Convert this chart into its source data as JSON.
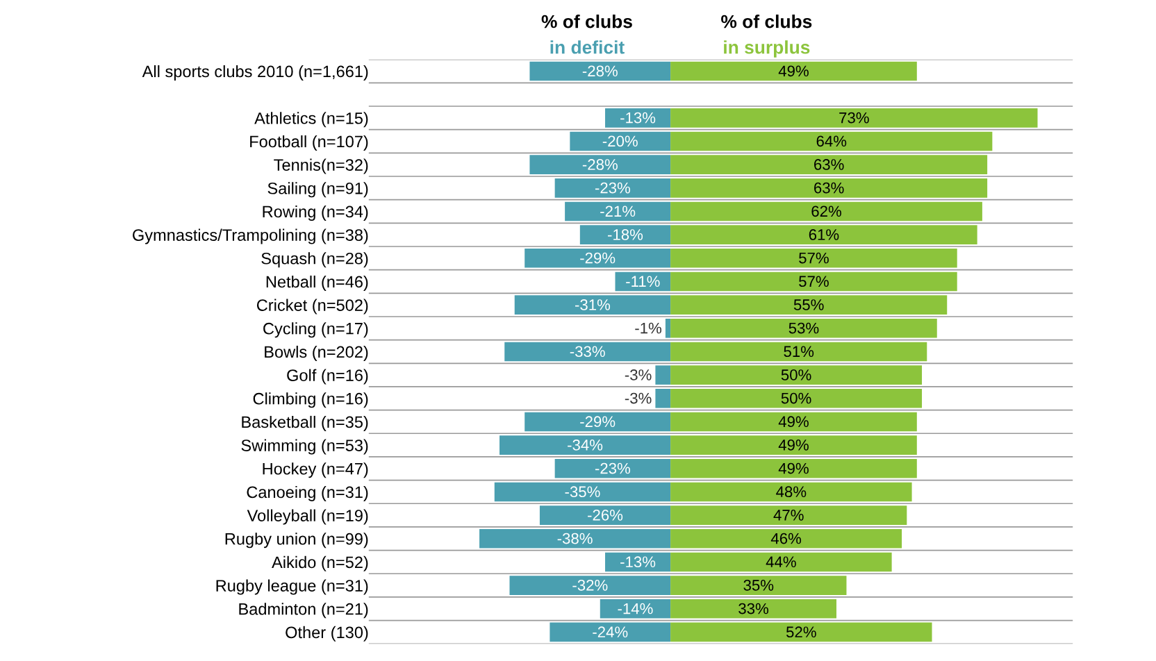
{
  "chart_data": {
    "type": "bar",
    "orientation": "horizontal",
    "stacked": true,
    "categories": [
      "All sports clubs 2010 (n=1,661)",
      null,
      "Athletics (n=15)",
      "Football (n=107)",
      "Tennis(n=32)",
      "Sailing (n=91)",
      "Rowing (n=34)",
      "Gymnastics/Trampolining (n=38)",
      "Squash (n=28)",
      "Netball (n=46)",
      "Cricket (n=502)",
      "Cycling (n=17)",
      "Bowls (n=202)",
      "Golf (n=16)",
      "Climbing (n=16)",
      "Basketball (n=35)",
      "Swimming (n=53)",
      "Hockey (n=47)",
      "Canoeing (n=31)",
      "Volleyball (n=19)",
      "Rugby union (n=99)",
      "Aikido (n=52)",
      "Rugby league (n=31)",
      "Badminton (n=21)",
      "Other (130)"
    ],
    "series": [
      {
        "name": "in deficit",
        "color": "#4a9fb0",
        "values": [
          -28,
          null,
          -13,
          -20,
          -28,
          -23,
          -21,
          -18,
          -29,
          -11,
          -31,
          -1,
          -33,
          -3,
          -3,
          -29,
          -34,
          -23,
          -35,
          -26,
          -38,
          -13,
          -32,
          -14,
          -24
        ],
        "value_labels": [
          "-28%",
          null,
          "-13%",
          "-20%",
          "-28%",
          "-23%",
          "-21%",
          "-18%",
          "-29%",
          "-11%",
          "-31%",
          "-1%",
          "-33%",
          "-3%",
          "-3%",
          "-29%",
          "-34%",
          "-23%",
          "-35%",
          "-26%",
          "-38%",
          "-13%",
          "-32%",
          "-14%",
          "-24%"
        ]
      },
      {
        "name": "in surplus",
        "color": "#8cc43c",
        "values": [
          49,
          null,
          73,
          64,
          63,
          63,
          62,
          61,
          57,
          57,
          55,
          53,
          51,
          50,
          50,
          49,
          49,
          49,
          48,
          47,
          46,
          44,
          35,
          33,
          52
        ],
        "value_labels": [
          "49%",
          null,
          "73%",
          "64%",
          "63%",
          "63%",
          "62%",
          "61%",
          "57%",
          "57%",
          "55%",
          "53%",
          "51%",
          "50%",
          "50%",
          "49%",
          "49%",
          "49%",
          "48%",
          "47%",
          "46%",
          "44%",
          "35%",
          "33%",
          "52%"
        ]
      }
    ],
    "annotations": [
      "% of clubs",
      "% of clubs"
    ],
    "xlim": [
      -60,
      80
    ],
    "tick_labels": false,
    "grid": "y",
    "legend": false
  }
}
